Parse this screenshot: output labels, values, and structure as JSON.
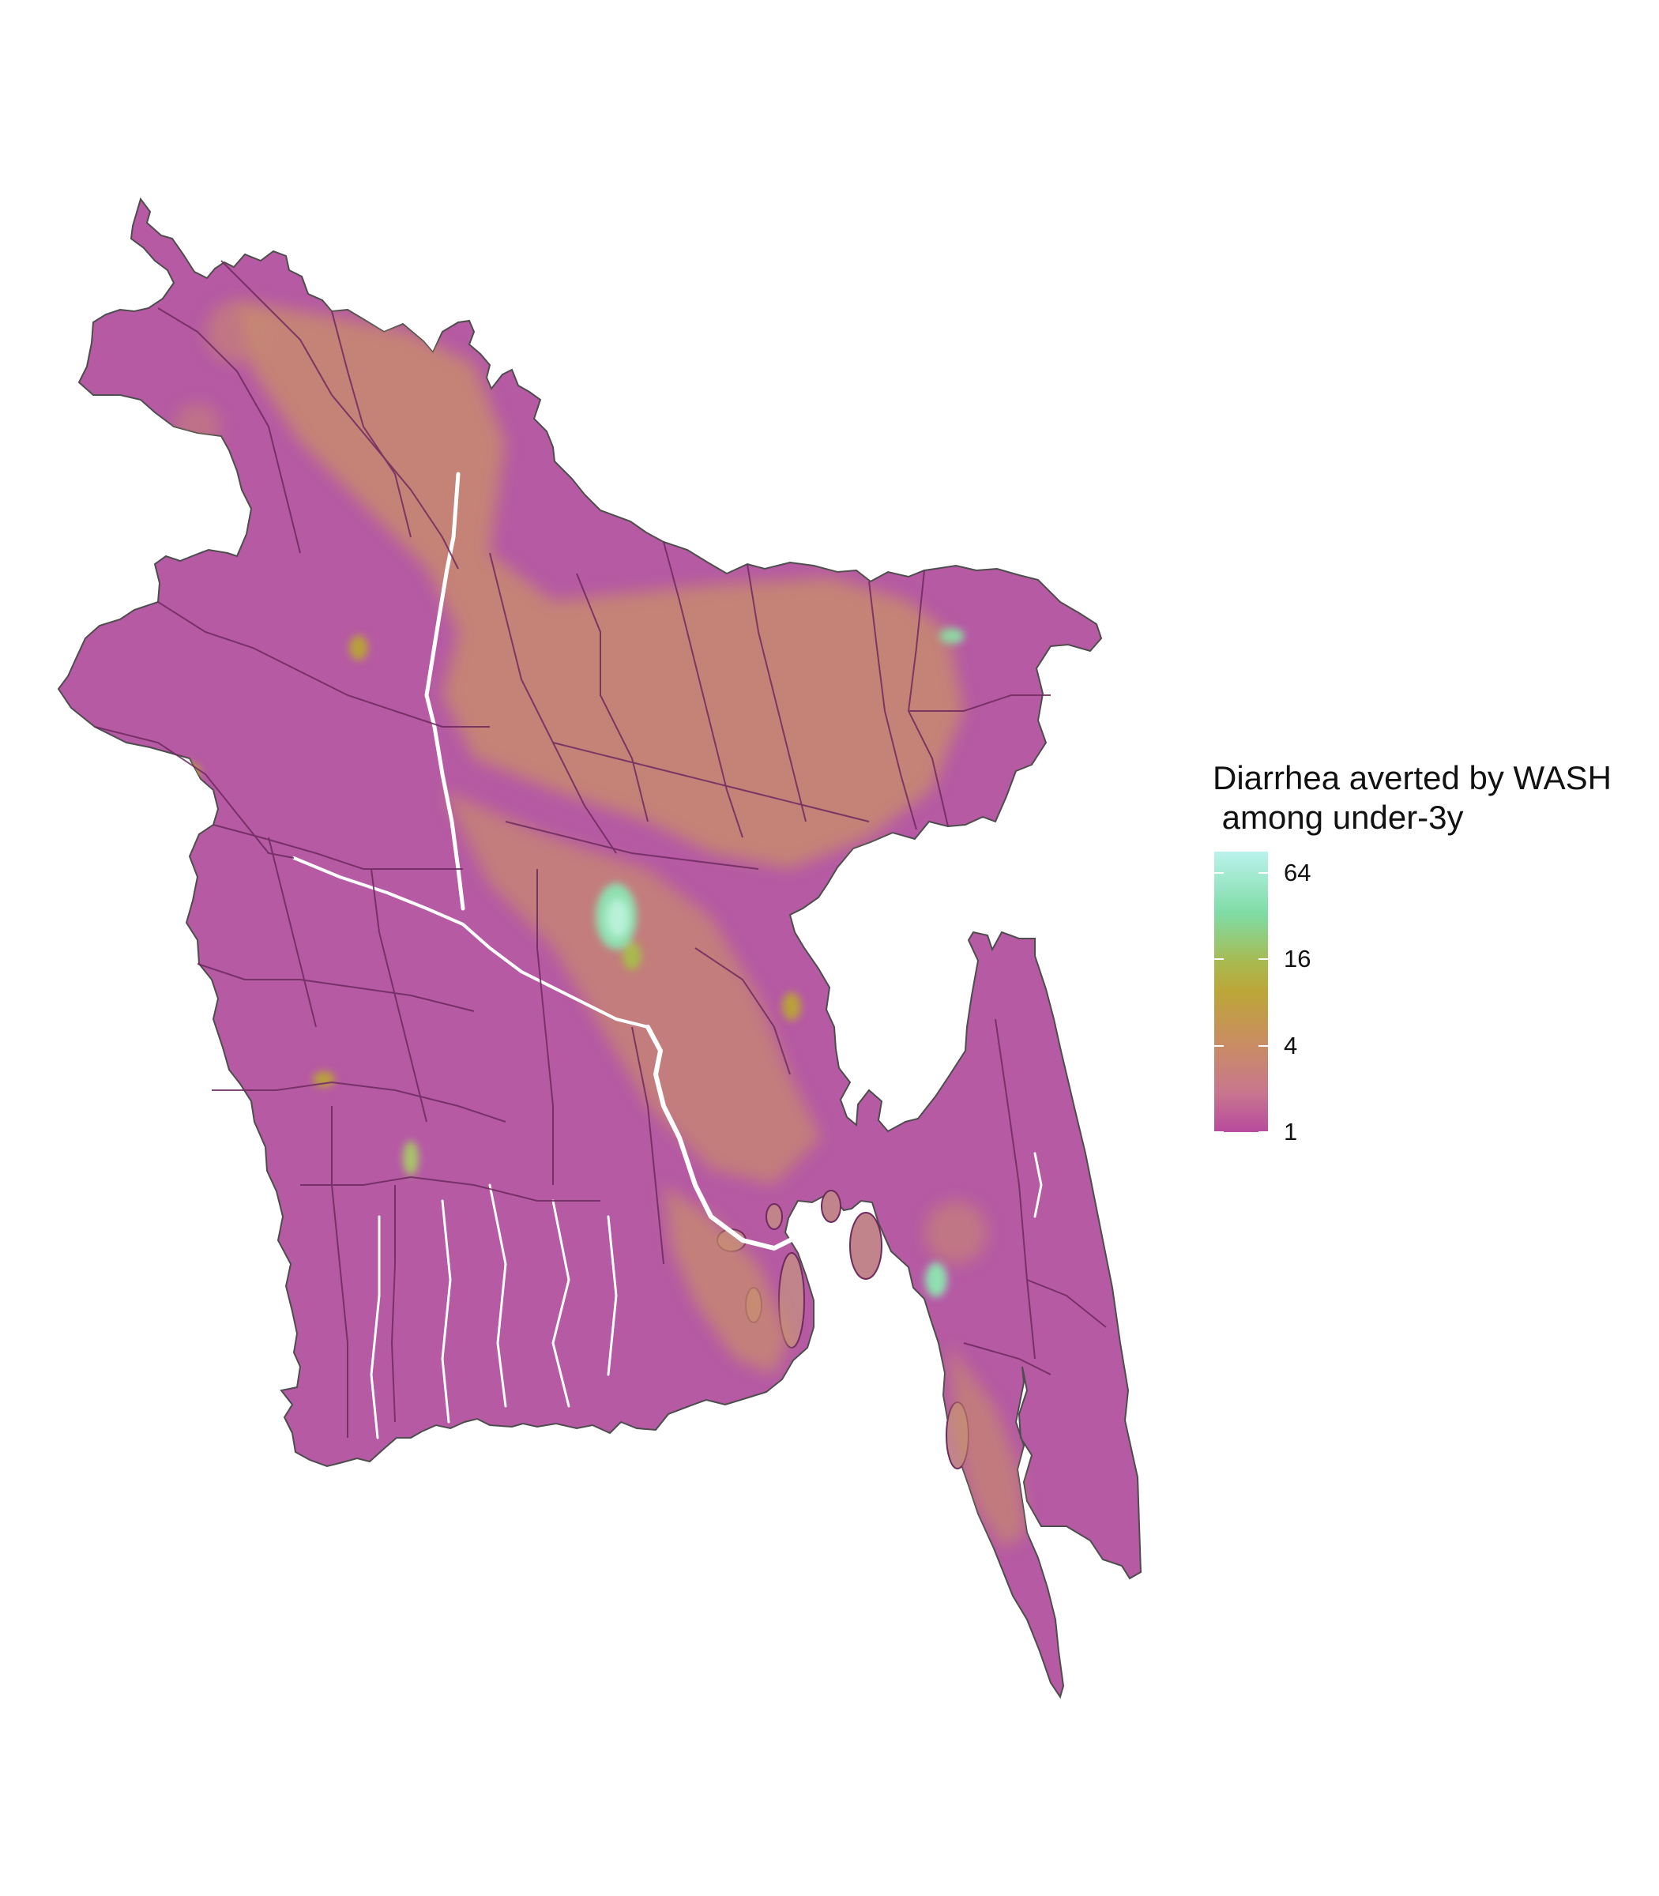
{
  "legend": {
    "title": "Diarrhea averted by WASH\n among under-3y",
    "ticks": [
      {
        "value": 1,
        "label": "1"
      },
      {
        "value": 4,
        "label": "4"
      },
      {
        "value": 16,
        "label": "16"
      },
      {
        "value": 64,
        "label": "64"
      }
    ],
    "scale": "log2",
    "colors": [
      "#b84a9e",
      "#c8768e",
      "#c98f5f",
      "#bca638",
      "#a9b94e",
      "#7fdca6",
      "#baf2ec"
    ]
  },
  "map": {
    "region": "Bangladesh",
    "fill_color": "#b65aa4",
    "district_border_color": "#6e2a5e",
    "water_color": "#ffffff",
    "hotspot_colors": {
      "moderate": "#c98f6a",
      "high": "#b9a03a",
      "very_high": "#8fe0b0"
    }
  }
}
